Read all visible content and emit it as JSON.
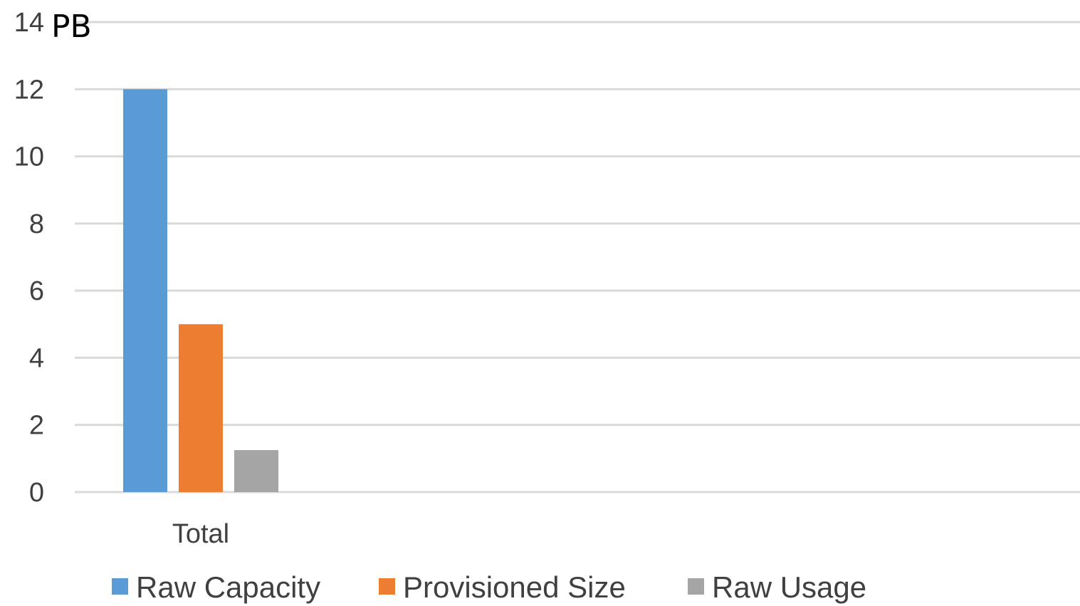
{
  "chart_data": {
    "type": "bar",
    "categories": [
      "Total"
    ],
    "series": [
      {
        "name": "Raw Capacity",
        "values": [
          12
        ],
        "color": "#5b9bd5"
      },
      {
        "name": "Provisioned Size",
        "values": [
          5
        ],
        "color": "#ed7d31"
      },
      {
        "name": "Raw Usage",
        "values": [
          1.25
        ],
        "color": "#a5a5a5"
      }
    ],
    "unit": "PB",
    "ylim": [
      0,
      14
    ],
    "yticks": [
      "0",
      "2",
      "4",
      "6",
      "8",
      "10",
      "12",
      "14"
    ],
    "grid": true,
    "legend_position": "bottom",
    "colors": {
      "grid": "#d9d9d9",
      "text": "#404040"
    }
  }
}
